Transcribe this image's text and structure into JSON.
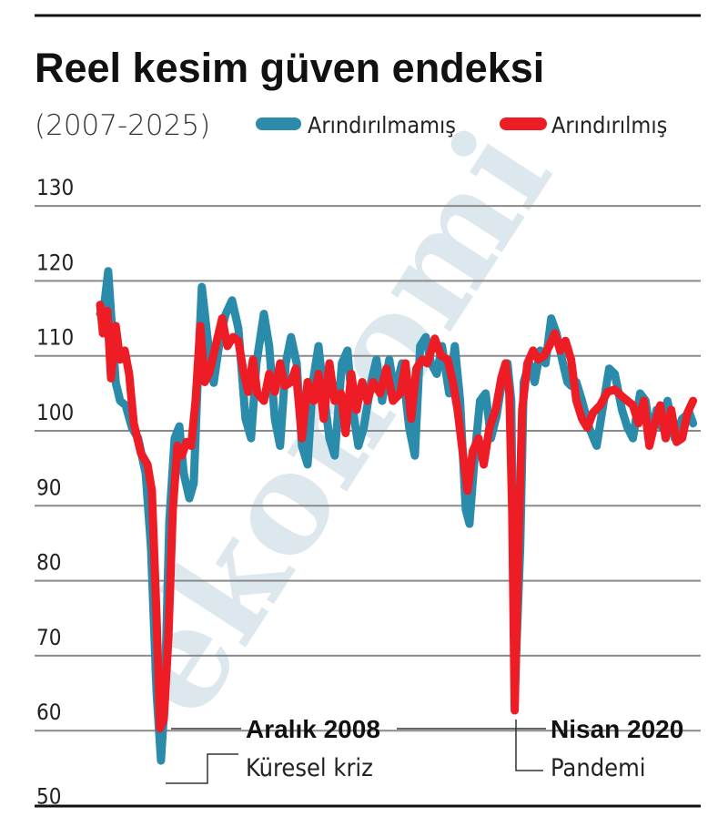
{
  "chart_data": {
    "type": "line",
    "title": "Reel kesim güven endeksi",
    "subtitle": "(2007-2025)",
    "xlabel": "",
    "ylabel": "",
    "xlim": [
      2006.97,
      2026.05
    ],
    "ylim": [
      50,
      130
    ],
    "yticks": [
      130,
      120,
      110,
      100,
      90,
      80,
      70,
      60,
      50
    ],
    "grid": true,
    "legend_placement": "top",
    "watermark": "ekonomi",
    "series": [
      {
        "name": "Arındırılmamış",
        "color": "#2a8bab",
        "points": [
          [
            2007.0,
            115.6
          ],
          [
            2007.15,
            117.4
          ],
          [
            2007.26,
            121.3
          ],
          [
            2007.38,
            113.7
          ],
          [
            2007.5,
            106.4
          ],
          [
            2007.64,
            104
          ],
          [
            2007.82,
            103.4
          ],
          [
            2008.02,
            100.4
          ],
          [
            2008.22,
            99
          ],
          [
            2008.46,
            94.3
          ],
          [
            2008.63,
            84.5
          ],
          [
            2008.81,
            65
          ],
          [
            2008.95,
            56
          ],
          [
            2009.07,
            64
          ],
          [
            2009.22,
            88
          ],
          [
            2009.39,
            99
          ],
          [
            2009.54,
            100.6
          ],
          [
            2009.68,
            94.3
          ],
          [
            2009.86,
            91
          ],
          [
            2010.0,
            93
          ],
          [
            2010.15,
            109
          ],
          [
            2010.26,
            119.2
          ],
          [
            2010.44,
            112.5
          ],
          [
            2010.64,
            106.4
          ],
          [
            2010.85,
            112.5
          ],
          [
            2011.02,
            115.5
          ],
          [
            2011.23,
            117.4
          ],
          [
            2011.43,
            113.7
          ],
          [
            2011.66,
            101.6
          ],
          [
            2011.84,
            99
          ],
          [
            2012.01,
            109
          ],
          [
            2012.25,
            115.6
          ],
          [
            2012.42,
            111.3
          ],
          [
            2012.6,
            101.6
          ],
          [
            2012.77,
            98
          ],
          [
            2012.95,
            109
          ],
          [
            2013.12,
            112.5
          ],
          [
            2013.3,
            109
          ],
          [
            2013.47,
            98
          ],
          [
            2013.65,
            95.5
          ],
          [
            2013.82,
            106.5
          ],
          [
            2014.0,
            111.3
          ],
          [
            2014.17,
            105
          ],
          [
            2014.35,
            99
          ],
          [
            2014.52,
            96.7
          ],
          [
            2014.75,
            109
          ],
          [
            2014.93,
            110.7
          ],
          [
            2015.1,
            102.8
          ],
          [
            2015.28,
            98
          ],
          [
            2015.45,
            100.4
          ],
          [
            2015.69,
            106.5
          ],
          [
            2015.86,
            109.5
          ],
          [
            2016.04,
            104
          ],
          [
            2016.27,
            109.5
          ],
          [
            2016.44,
            105
          ],
          [
            2016.68,
            109
          ],
          [
            2016.91,
            100.4
          ],
          [
            2017.09,
            96.7
          ],
          [
            2017.26,
            111.3
          ],
          [
            2017.44,
            112.5
          ],
          [
            2017.61,
            109
          ],
          [
            2017.79,
            107.6
          ],
          [
            2017.96,
            111.3
          ],
          [
            2018.19,
            105
          ],
          [
            2018.37,
            111.3
          ],
          [
            2018.54,
            104
          ],
          [
            2018.72,
            89.5
          ],
          [
            2018.84,
            87.6
          ],
          [
            2019.01,
            96.7
          ],
          [
            2019.18,
            104
          ],
          [
            2019.36,
            105
          ],
          [
            2019.53,
            99
          ],
          [
            2019.71,
            102
          ],
          [
            2019.88,
            106.5
          ],
          [
            2020.06,
            109
          ],
          [
            2020.18,
            104
          ],
          [
            2020.29,
            65
          ],
          [
            2020.47,
            84.5
          ],
          [
            2020.58,
            106.5
          ],
          [
            2020.76,
            109
          ],
          [
            2020.93,
            106.5
          ],
          [
            2021.11,
            110.7
          ],
          [
            2021.28,
            109
          ],
          [
            2021.46,
            115
          ],
          [
            2021.63,
            113
          ],
          [
            2021.81,
            109.5
          ],
          [
            2021.98,
            106.5
          ],
          [
            2022.1,
            106
          ],
          [
            2022.27,
            106.5
          ],
          [
            2022.45,
            104
          ],
          [
            2022.68,
            100.4
          ],
          [
            2022.92,
            98
          ],
          [
            2023.15,
            104
          ],
          [
            2023.32,
            108.3
          ],
          [
            2023.5,
            107.6
          ],
          [
            2023.73,
            102.8
          ],
          [
            2023.91,
            100.4
          ],
          [
            2024.08,
            99
          ],
          [
            2024.31,
            105
          ],
          [
            2024.49,
            104
          ],
          [
            2024.66,
            99
          ],
          [
            2024.84,
            102.8
          ],
          [
            2025.01,
            100.4
          ],
          [
            2025.19,
            104
          ],
          [
            2025.42,
            99
          ],
          [
            2025.66,
            101.6
          ],
          [
            2025.89,
            102.4
          ],
          [
            2026.01,
            101
          ]
        ]
      },
      {
        "name": "Arındırılmış",
        "color": "#ee1c25",
        "points": [
          [
            2007.0,
            116.8
          ],
          [
            2007.09,
            113
          ],
          [
            2007.23,
            116
          ],
          [
            2007.35,
            107
          ],
          [
            2007.5,
            114
          ],
          [
            2007.64,
            109.5
          ],
          [
            2007.79,
            110.7
          ],
          [
            2007.93,
            107.6
          ],
          [
            2008.08,
            101
          ],
          [
            2008.31,
            97
          ],
          [
            2008.52,
            95.5
          ],
          [
            2008.66,
            92
          ],
          [
            2008.81,
            75
          ],
          [
            2008.92,
            60.3
          ],
          [
            2009.04,
            61.5
          ],
          [
            2009.19,
            72.5
          ],
          [
            2009.33,
            89.5
          ],
          [
            2009.48,
            98
          ],
          [
            2009.62,
            96.7
          ],
          [
            2009.77,
            98.5
          ],
          [
            2009.92,
            98
          ],
          [
            2010.06,
            104
          ],
          [
            2010.21,
            114
          ],
          [
            2010.35,
            106.5
          ],
          [
            2010.5,
            107.7
          ],
          [
            2010.7,
            111.3
          ],
          [
            2010.91,
            115
          ],
          [
            2011.08,
            111.3
          ],
          [
            2011.26,
            112.5
          ],
          [
            2011.43,
            112
          ],
          [
            2011.61,
            107.6
          ],
          [
            2011.75,
            105.2
          ],
          [
            2011.9,
            109.5
          ],
          [
            2012.04,
            105
          ],
          [
            2012.25,
            104
          ],
          [
            2012.42,
            107.6
          ],
          [
            2012.6,
            105.2
          ],
          [
            2012.77,
            109
          ],
          [
            2012.92,
            106
          ],
          [
            2013.12,
            106.5
          ],
          [
            2013.27,
            108.3
          ],
          [
            2013.47,
            99
          ],
          [
            2013.65,
            106.5
          ],
          [
            2013.85,
            104
          ],
          [
            2014.0,
            107.6
          ],
          [
            2014.17,
            101.6
          ],
          [
            2014.35,
            109
          ],
          [
            2014.52,
            104
          ],
          [
            2014.72,
            105
          ],
          [
            2014.87,
            99.7
          ],
          [
            2015.05,
            107.6
          ],
          [
            2015.22,
            102.8
          ],
          [
            2015.4,
            106.5
          ],
          [
            2015.57,
            104
          ],
          [
            2015.75,
            106.5
          ],
          [
            2015.98,
            105
          ],
          [
            2016.18,
            108.3
          ],
          [
            2016.39,
            104
          ],
          [
            2016.62,
            105
          ],
          [
            2016.79,
            109
          ],
          [
            2016.97,
            101.6
          ],
          [
            2017.14,
            108.3
          ],
          [
            2017.32,
            109.5
          ],
          [
            2017.49,
            109
          ],
          [
            2017.73,
            112.3
          ],
          [
            2017.93,
            110
          ],
          [
            2018.14,
            109.5
          ],
          [
            2018.31,
            106.5
          ],
          [
            2018.46,
            102.8
          ],
          [
            2018.6,
            98
          ],
          [
            2018.78,
            92
          ],
          [
            2018.95,
            97.3
          ],
          [
            2019.13,
            99
          ],
          [
            2019.3,
            95.5
          ],
          [
            2019.48,
            100.4
          ],
          [
            2019.68,
            102.8
          ],
          [
            2019.86,
            107
          ],
          [
            2020.0,
            109
          ],
          [
            2020.12,
            105
          ],
          [
            2020.21,
            89.5
          ],
          [
            2020.29,
            62.7
          ],
          [
            2020.41,
            84.5
          ],
          [
            2020.53,
            102.8
          ],
          [
            2020.7,
            109
          ],
          [
            2020.88,
            110.7
          ],
          [
            2021.05,
            109.5
          ],
          [
            2021.23,
            110
          ],
          [
            2021.4,
            111.3
          ],
          [
            2021.58,
            113
          ],
          [
            2021.75,
            110.7
          ],
          [
            2021.92,
            112
          ],
          [
            2022.1,
            109.5
          ],
          [
            2022.27,
            104
          ],
          [
            2022.45,
            101.6
          ],
          [
            2022.62,
            100.4
          ],
          [
            2022.8,
            102.4
          ],
          [
            2023.03,
            103.4
          ],
          [
            2023.27,
            105.2
          ],
          [
            2023.5,
            105.5
          ],
          [
            2023.73,
            104.6
          ],
          [
            2023.91,
            104
          ],
          [
            2024.08,
            103.4
          ],
          [
            2024.26,
            101
          ],
          [
            2024.43,
            104
          ],
          [
            2024.61,
            98
          ],
          [
            2024.78,
            101
          ],
          [
            2024.96,
            103.4
          ],
          [
            2025.13,
            99
          ],
          [
            2025.31,
            102.8
          ],
          [
            2025.48,
            98.5
          ],
          [
            2025.66,
            99
          ],
          [
            2025.83,
            102.4
          ],
          [
            2026.01,
            104
          ]
        ]
      }
    ],
    "annotations": [
      {
        "title": "Aralık 2008",
        "text": "Küresel kriz",
        "x": 2008.95,
        "y": 56
      },
      {
        "title": "Nisan 2020",
        "text": "Pandemi",
        "x": 2020.29,
        "y": 62.7
      }
    ]
  }
}
